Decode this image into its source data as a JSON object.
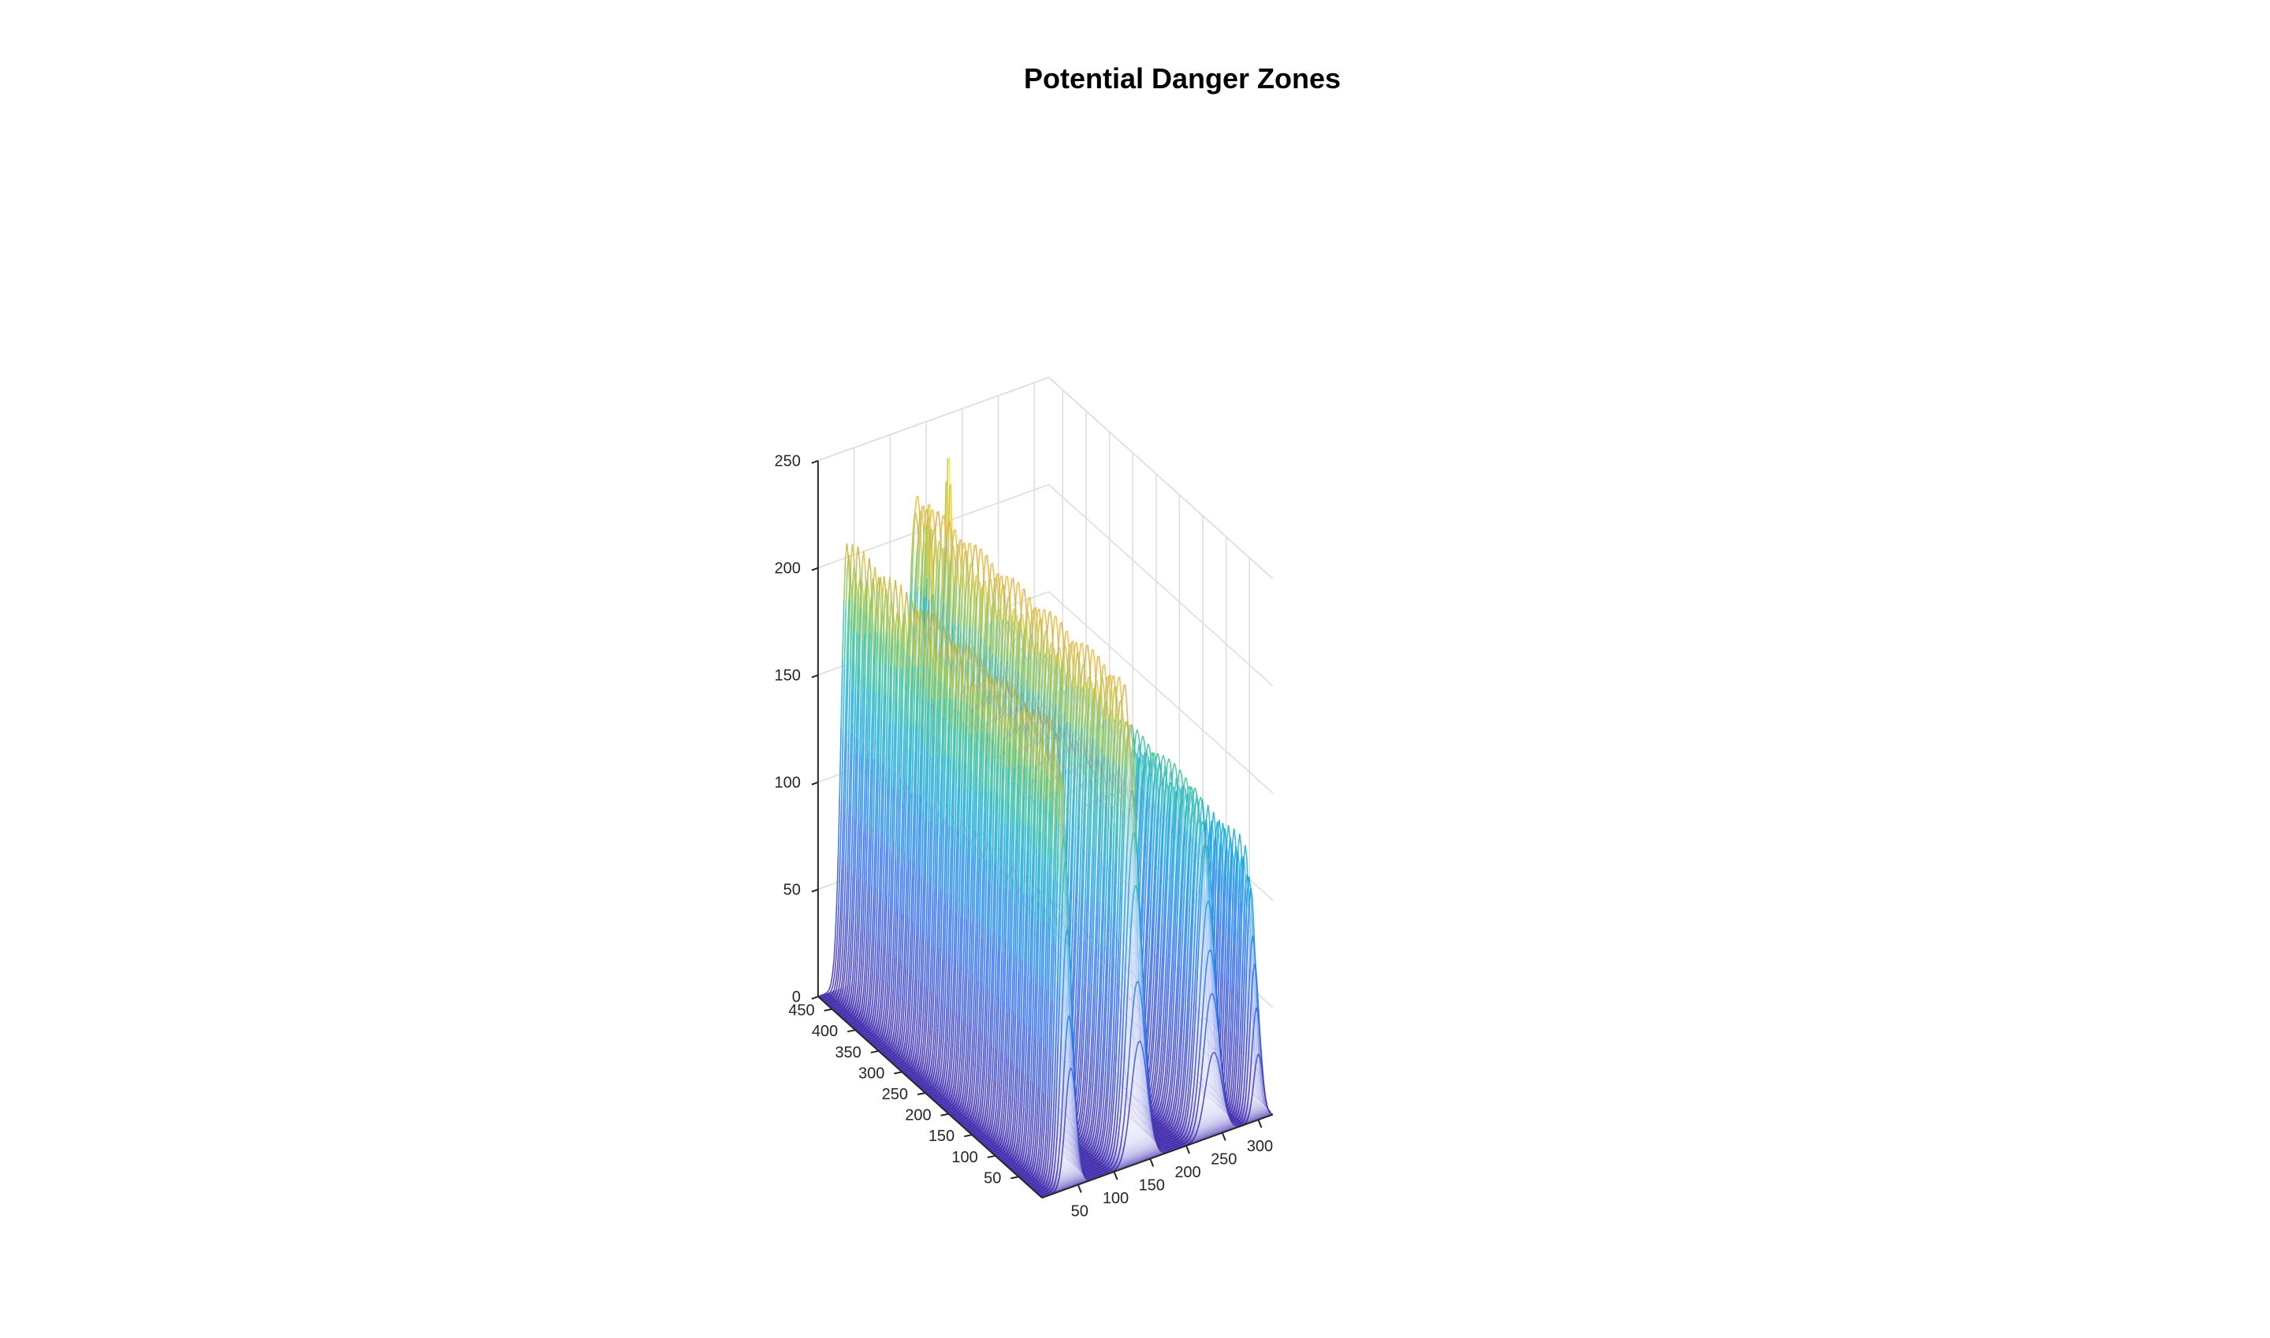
{
  "chart_data": {
    "type": "surface",
    "title": "Potential Danger Zones",
    "xlabel": "",
    "ylabel": "",
    "zlabel": "",
    "xlim": [
      1,
      320
    ],
    "ylim": [
      1,
      480
    ],
    "zlim": [
      0,
      250
    ],
    "x_ticks": [
      "50",
      "100",
      "150",
      "200",
      "250",
      "300"
    ],
    "y_ticks": [
      "50",
      "100",
      "150",
      "200",
      "250",
      "300",
      "350",
      "400",
      "450"
    ],
    "z_ticks": [
      "0",
      "50",
      "100",
      "150",
      "200",
      "250"
    ],
    "grid": true,
    "colormap": "parula",
    "face_alpha": "semi-transparent",
    "edge_color": "interpolated",
    "ridges": [
      {
        "x_center": 40,
        "x_width": 22,
        "y_range": [
          0,
          480
        ],
        "peak_z": 200
      },
      {
        "x_center": 135,
        "x_width": 32,
        "y_range": [
          0,
          480
        ],
        "peak_z": 210
      },
      {
        "x_center": 238,
        "x_width": 32,
        "y_range": [
          0,
          480
        ],
        "peak_z": 150
      },
      {
        "x_center": 300,
        "x_width": 18,
        "y_range": [
          0,
          480
        ],
        "peak_z": 120
      }
    ],
    "blocks": [
      {
        "x_range": [
          135,
          175
        ],
        "y_range": [
          100,
          480
        ],
        "peak_z": 160
      },
      {
        "x_range": [
          175,
          265
        ],
        "y_range": [
          160,
          480
        ],
        "peak_z": 120
      }
    ],
    "spikes": [
      {
        "x": 155,
        "y": 440,
        "z": 245
      },
      {
        "x": 115,
        "y": 420,
        "z": 232
      }
    ],
    "colors": {
      "low": "#3E26A8",
      "mid": "#13BEB8",
      "high": "#F9FB15",
      "floor": "#5848B8"
    }
  }
}
